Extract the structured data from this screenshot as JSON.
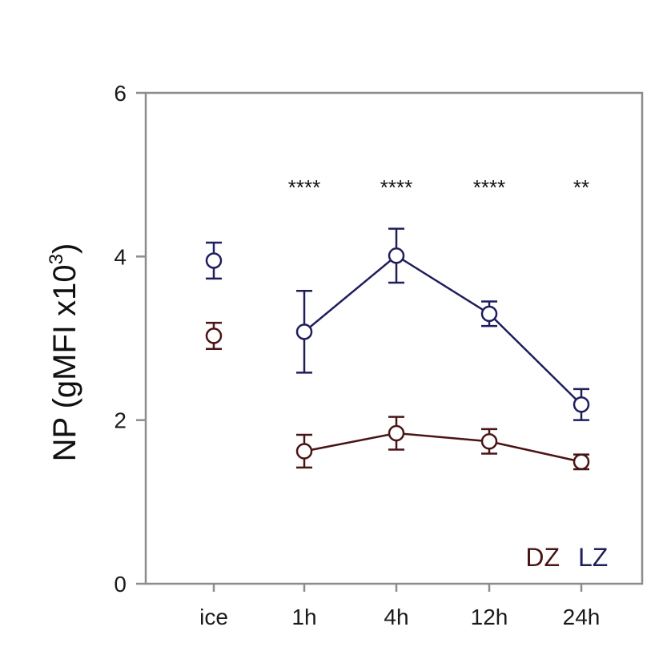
{
  "chart_data": {
    "type": "line",
    "title": "",
    "xlabel": "",
    "ylabel": "NP (gMFI x10",
    "ylabel_superscript": "3",
    "ylabel_suffix": ")",
    "ylim": [
      0,
      6
    ],
    "yticks": [
      "0",
      "2",
      "4",
      "6"
    ],
    "ytick_values": [
      0,
      2,
      4,
      6
    ],
    "categories": [
      "ice",
      "1h",
      "4h",
      "12h",
      "24h"
    ],
    "connected_categories": [
      "1h",
      "4h",
      "12h",
      "24h"
    ],
    "series": [
      {
        "name": "DZ",
        "color": "#4a1414",
        "values": [
          3.03,
          1.62,
          1.84,
          1.74,
          1.49
        ],
        "errors": [
          0.16,
          0.2,
          0.2,
          0.15,
          0.09
        ]
      },
      {
        "name": "LZ",
        "color": "#1e1e5e",
        "values": [
          3.95,
          3.08,
          4.01,
          3.3,
          2.19
        ],
        "errors": [
          0.22,
          0.5,
          0.33,
          0.15,
          0.19
        ]
      }
    ],
    "significance": [
      {
        "category": "1h",
        "label": "****"
      },
      {
        "category": "4h",
        "label": "****"
      },
      {
        "category": "12h",
        "label": "****"
      },
      {
        "category": "24h",
        "label": "**"
      }
    ],
    "legend": [
      "DZ",
      "LZ"
    ],
    "legend_position": "bottom-right"
  },
  "colors": {
    "axis": "#8c8c8c",
    "dz": "#4a1414",
    "lz": "#1e1e5e"
  }
}
